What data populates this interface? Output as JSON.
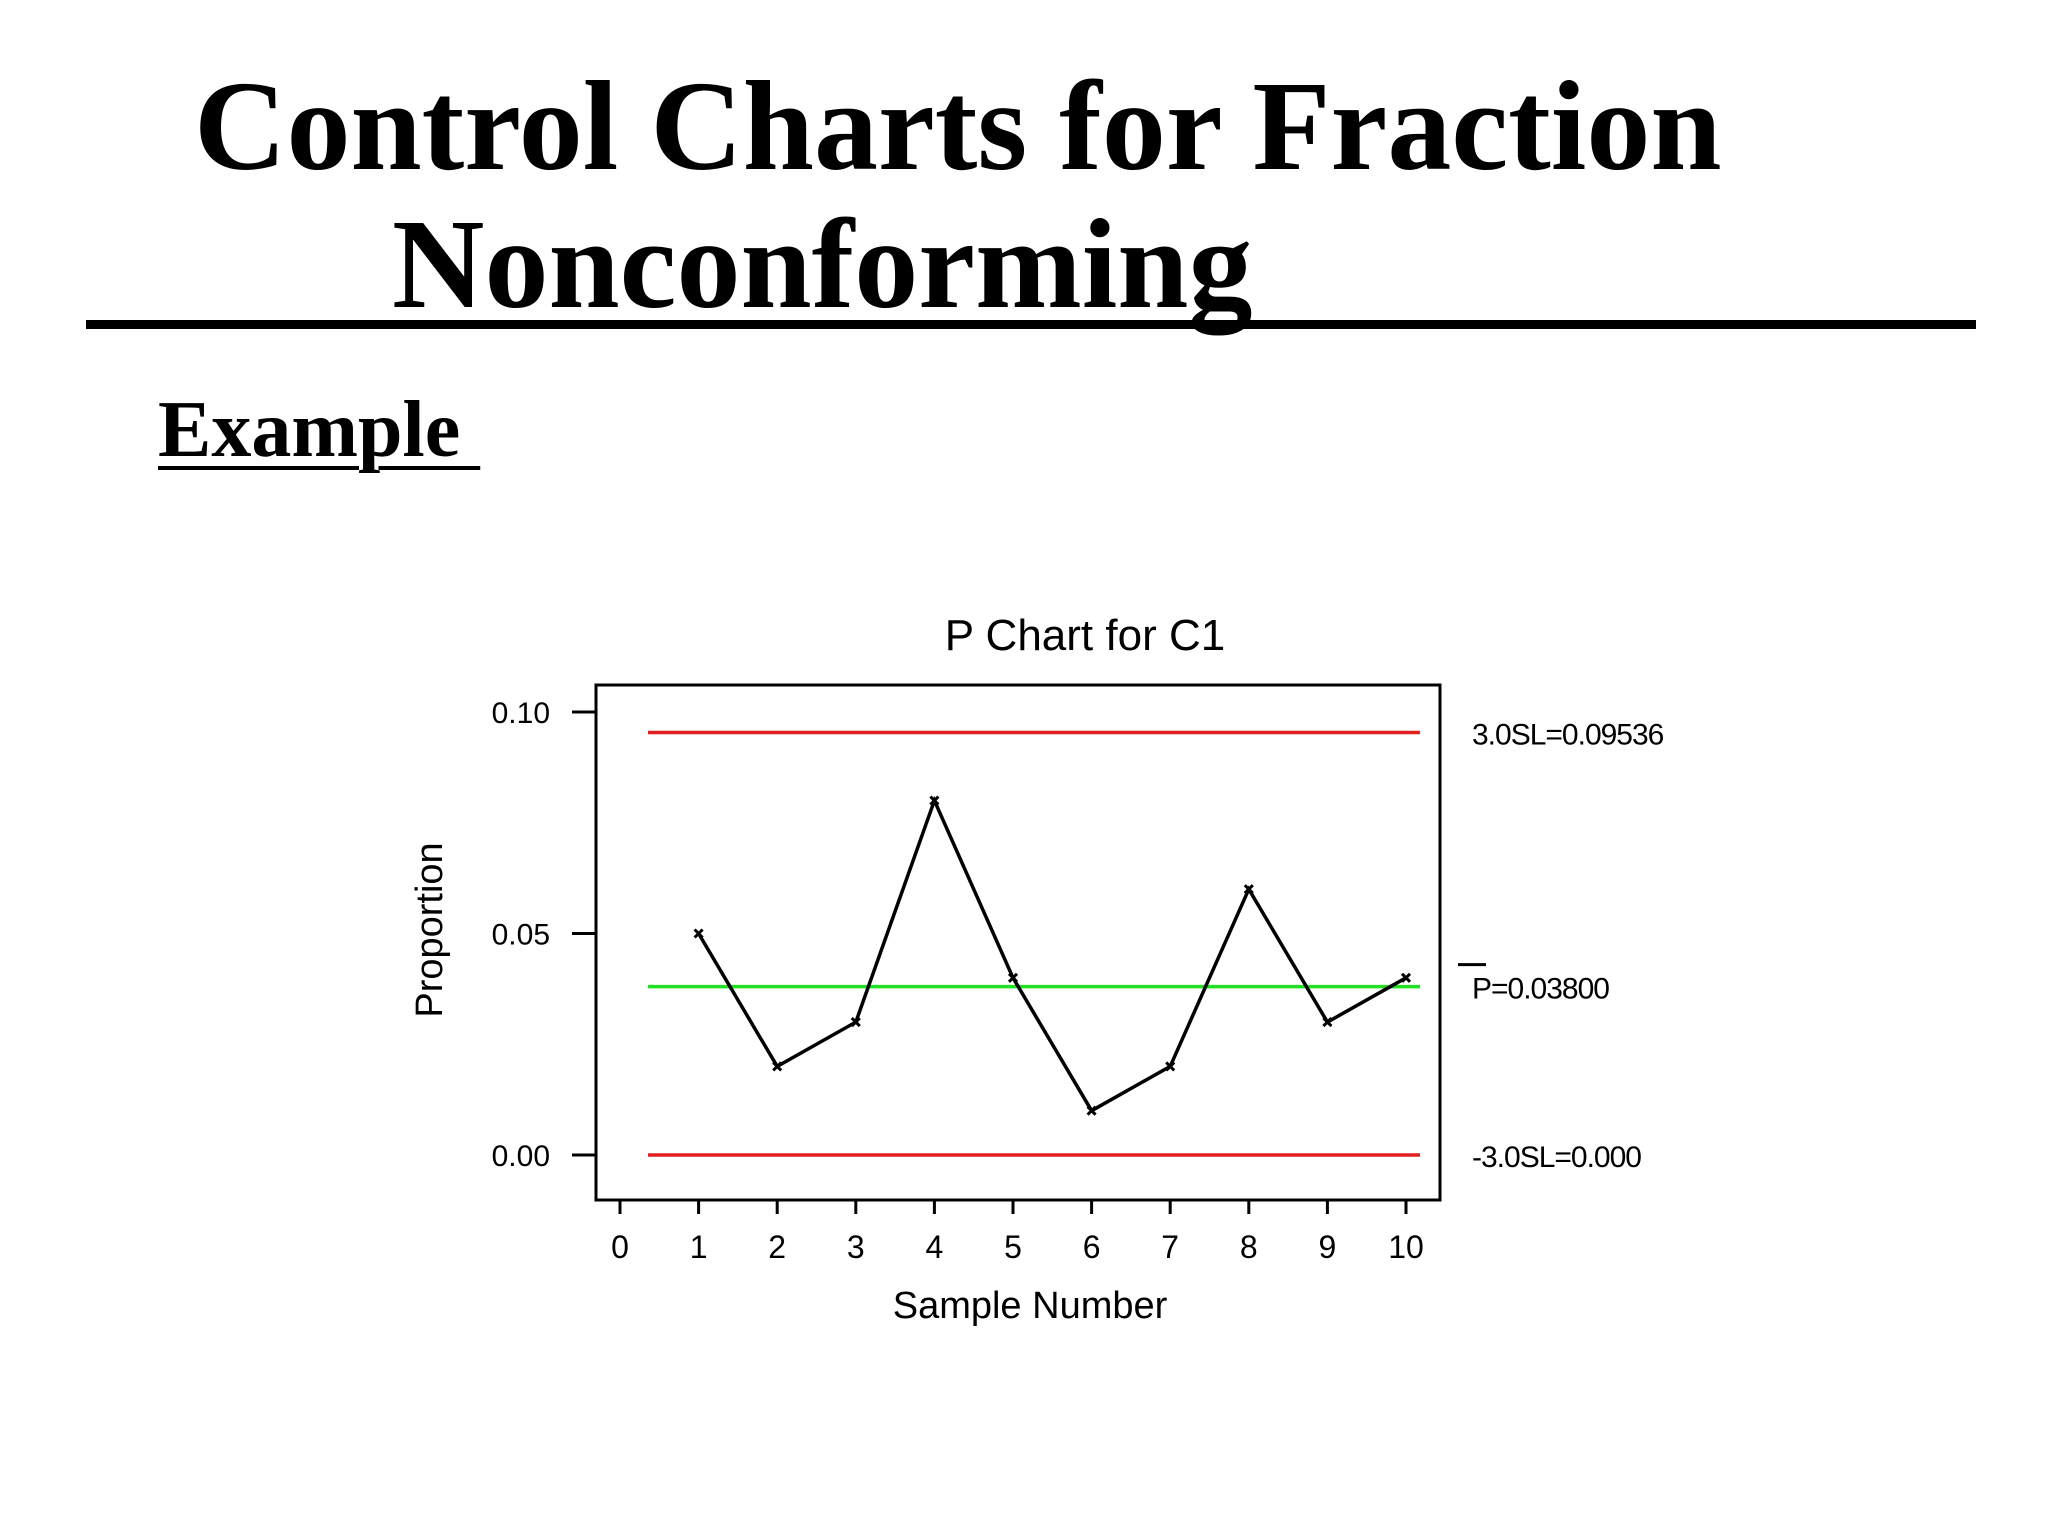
{
  "slide": {
    "title_line_1": "Control Charts for Fraction",
    "title_line_2": "Nonconforming",
    "subheading": "Example "
  },
  "chart_data": {
    "type": "line",
    "title": "P Chart for C1",
    "xlabel": "Sample Number",
    "ylabel": "Proportion",
    "x": [
      1,
      2,
      3,
      4,
      5,
      6,
      7,
      8,
      9,
      10
    ],
    "values": [
      0.05,
      0.02,
      0.03,
      0.08,
      0.04,
      0.01,
      0.02,
      0.06,
      0.03,
      0.04
    ],
    "xlim": [
      0,
      10
    ],
    "ylim": [
      0.0,
      0.1
    ],
    "x_ticks": [
      "0",
      "1",
      "2",
      "3",
      "4",
      "5",
      "6",
      "7",
      "8",
      "9",
      "10"
    ],
    "y_ticks": [
      {
        "value": 0.1,
        "label": "0.10"
      },
      {
        "value": 0.05,
        "label": "0.05"
      },
      {
        "value": 0.0,
        "label": "0.00"
      }
    ],
    "control_limits": [
      {
        "kind": "upper",
        "value": 0.09536,
        "label": "3.0SL=0.09536",
        "color": "#e02020"
      },
      {
        "kind": "center",
        "value": 0.038,
        "label": "P=0.03800",
        "color": "#22e022",
        "overbar": true
      },
      {
        "kind": "lower",
        "value": 0.0,
        "label": "-3.0SL=0.000",
        "color": "#e02020"
      }
    ],
    "line_color": "#000000",
    "grid": false
  }
}
